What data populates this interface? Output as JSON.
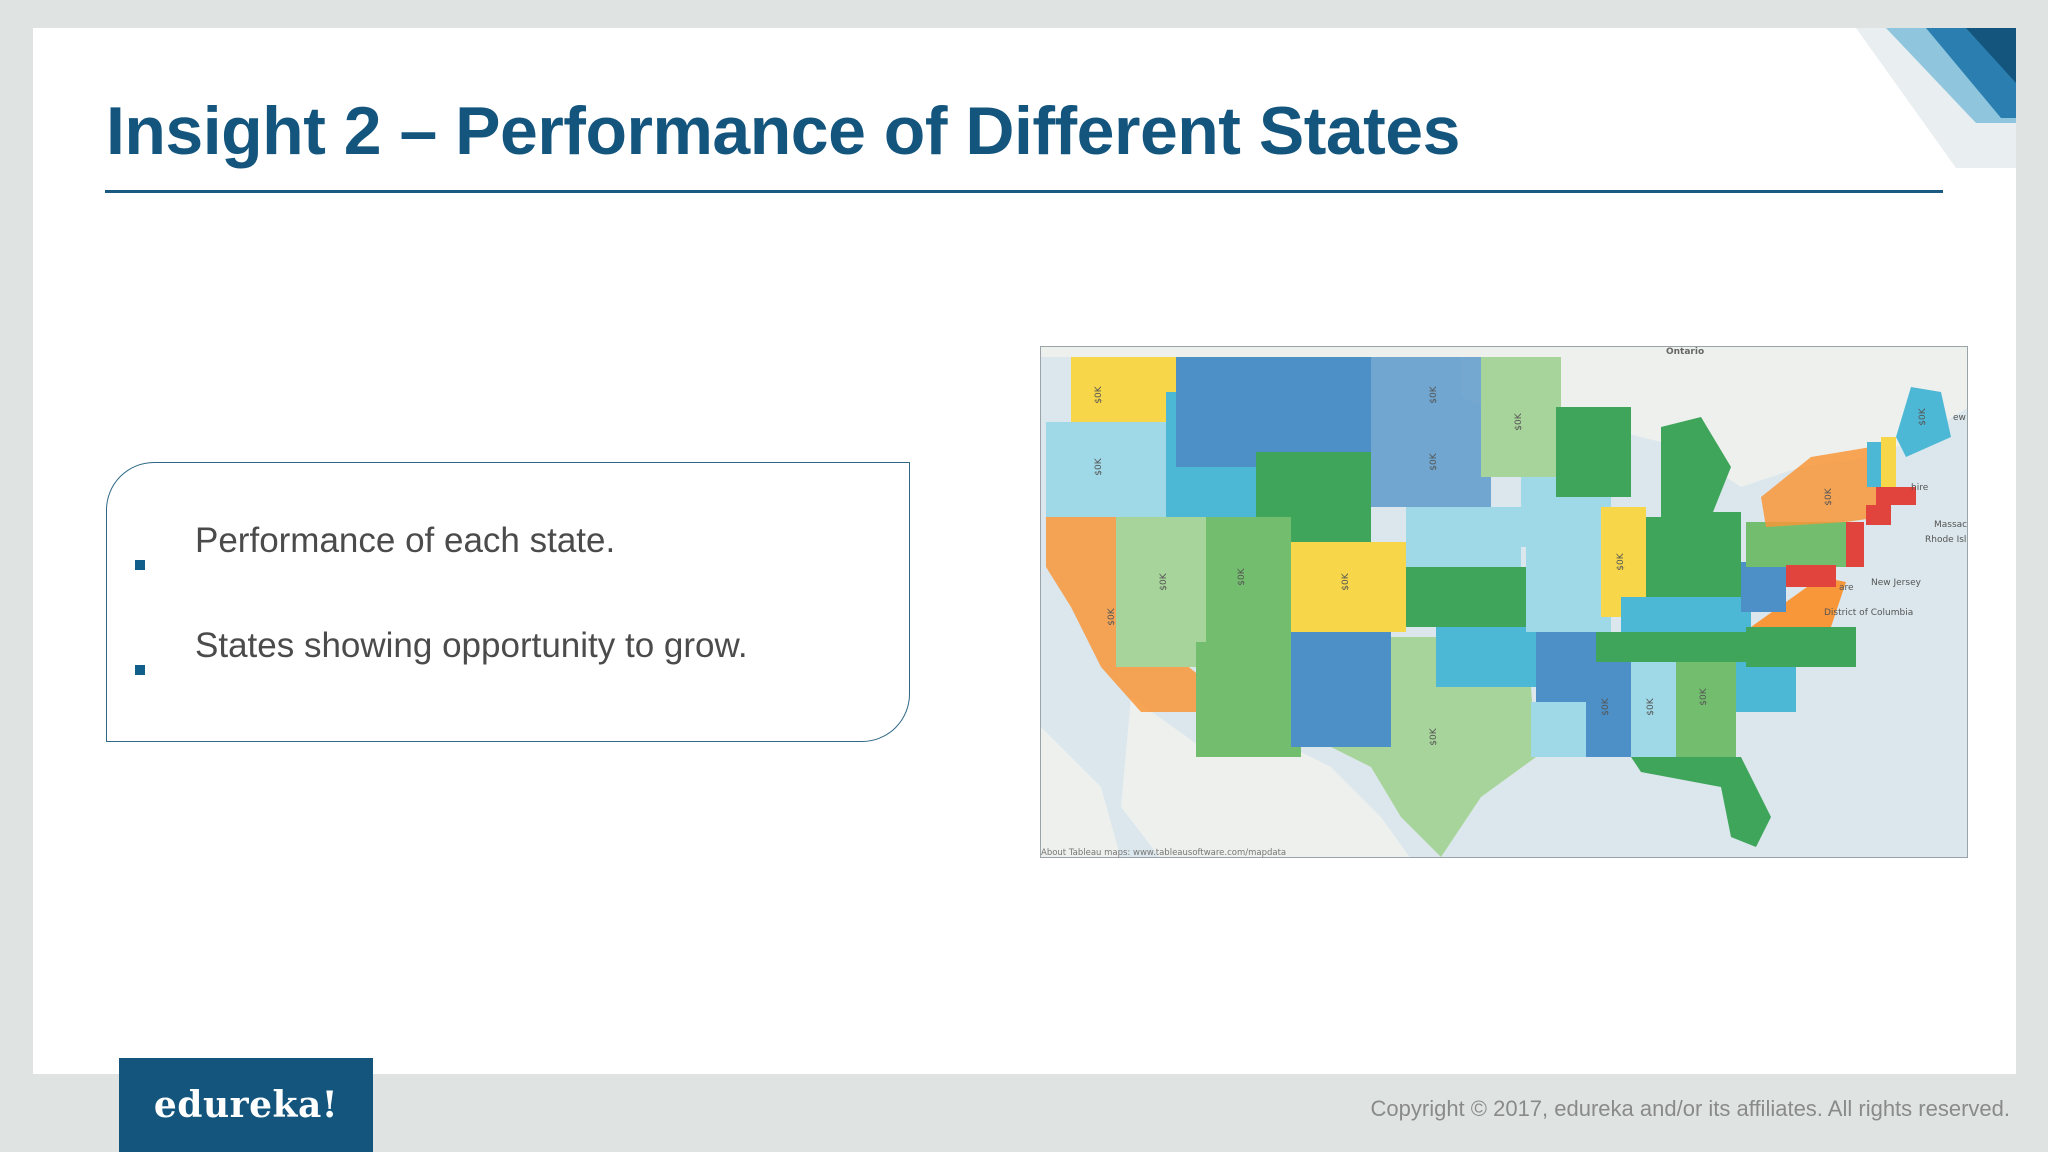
{
  "slide": {
    "title": "Insight 2 – Performance of Different States",
    "bullets": [
      "Performance of each state.",
      " States showing opportunity to grow."
    ]
  },
  "map": {
    "labels": {
      "country": "Ontario",
      "nj": "New Jersey",
      "dc": "District of Columbia",
      "ma": "Massac",
      "ri": "Rhode Isl",
      "nh": "hire",
      "de": "are",
      "me": "ew",
      "attribution": "About Tableau maps: www.tableausoftware.com/mapdata"
    },
    "state_value_label": "$0K",
    "palette": {
      "water": "#dbe7ec",
      "land": "#eef0ee",
      "red": "#e0443c",
      "orange": "#f8963a",
      "yellow": "#f7d64a",
      "light_green": "#a7d49a",
      "green": "#3fa55b",
      "light_blue": "#9fd8e6",
      "cyan": "#4db8d6",
      "blue": "#4c90c7"
    }
  },
  "footer": {
    "logo": "edureka!",
    "copyright": "Copyright © 2017, edureka and/or its affiliates. All rights reserved."
  }
}
